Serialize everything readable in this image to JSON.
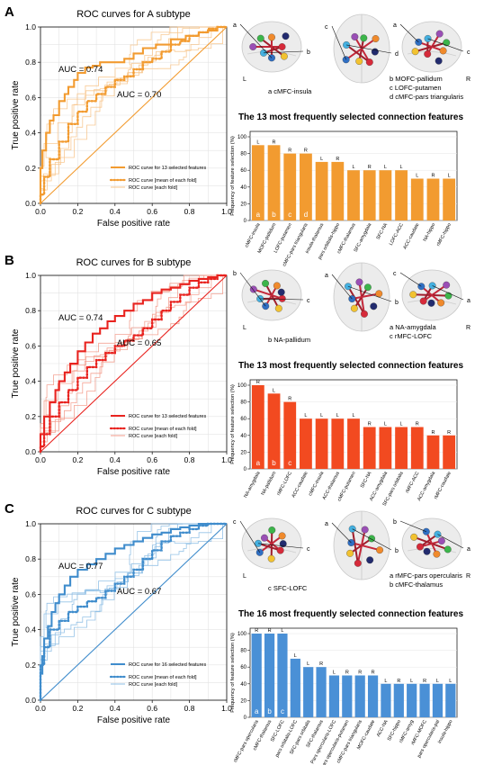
{
  "panels": [
    {
      "letter": "A",
      "roc_title": "ROC curves for A subtype",
      "color": "#f29b30",
      "light_color": "#f7c48a",
      "bar_color": "#f29b30",
      "x_axis_label": "False positive rate",
      "y_axis_label": "True positive rate",
      "auc_main": "AUC = 0.74",
      "auc_fold": "AUC = 0.70",
      "legend": [
        "ROC curve for 13 selected features",
        "ROC curve [mean of each fold]",
        "ROC curve [each fold]"
      ],
      "brain_side_left": "L",
      "brain_side_right": "R",
      "brain_letters": [
        "a",
        "b",
        "c",
        "d",
        "a",
        "c"
      ],
      "conn_left": [
        "a  cMFC-insula"
      ],
      "conn_right": [
        "b  MOFC-pallidum",
        "c  LOFC-putamen",
        "d  cMFC-pars triangularis"
      ],
      "bar_title": "The 13 most frequently selected connection features",
      "bar_ylabel": "Frequency of feature selection (%)",
      "bar_yticks": [
        "0",
        "20",
        "40",
        "60",
        "80",
        "100"
      ],
      "features": [
        "cMFC-insula",
        "MOFC-pallidum",
        "LOFC-putamen",
        "cMFC-pars triangularis",
        "insula-thalamus",
        "pars orbitalis-hippo",
        "cMFC-thalamus",
        "SFC-amygdala",
        "SFC-NA",
        "LOFC-ACC",
        "ACC-caudate",
        "NA-hippo",
        "rMFC-hippo"
      ],
      "top_labels": [
        "L",
        "R",
        "R",
        "R",
        "L",
        "R",
        "L",
        "R",
        "L",
        "L",
        "L",
        "R",
        "L"
      ],
      "inner_labels": [
        "a",
        "b",
        "c",
        "d"
      ]
    },
    {
      "letter": "B",
      "roc_title": "ROC curves for B subtype",
      "color": "#e8231f",
      "light_color": "#f39a8a",
      "bar_color": "#f24a20",
      "x_axis_label": "False positive rate",
      "y_axis_label": "True positive rate",
      "auc_main": "AUC = 0.74",
      "auc_fold": "AUC = 0.65",
      "legend": [
        "ROC curve for 13 selected features",
        "ROC curve [mean of each fold]",
        "ROC curve [each fold]"
      ],
      "brain_side_left": "L",
      "brain_side_right": "R",
      "brain_letters": [
        "b",
        "c",
        "a",
        "b",
        "c",
        "a"
      ],
      "conn_left": [
        "b  NA-pallidum"
      ],
      "conn_right": [
        "a  NA-amygdala",
        "c  rMFC-LOFC"
      ],
      "bar_title": "The 13 most frequently selected connection features",
      "bar_ylabel": "Frequency of feature selection (%)",
      "bar_yticks": [
        "0",
        "20",
        "40",
        "60",
        "80",
        "100"
      ],
      "features": [
        "NA-amygdala",
        "NA-pallidum",
        "rMFC-LOFC",
        "ACC-caudate",
        "cMFC-insula",
        "ACC-thalamus",
        "cMFC-putamen",
        "SFC-NA",
        "ACC-amygdala",
        "SFC-pars orbitalis",
        "rMFC-ACC",
        "ACC-amygdala",
        "rMFC-caudate"
      ],
      "top_labels": [
        "R",
        "L",
        "R",
        "L",
        "L",
        "L",
        "L",
        "R",
        "L",
        "L",
        "R",
        "R",
        "R"
      ],
      "inner_labels": [
        "a",
        "b",
        "c"
      ]
    },
    {
      "letter": "C",
      "roc_title": "ROC curves for C subtype",
      "color": "#3f8ccc",
      "light_color": "#8bbce4",
      "bar_color": "#4a90d6",
      "x_axis_label": "False positive rate",
      "y_axis_label": "True positive rate",
      "auc_main": "AUC = 0.77",
      "auc_fold": "AUC = 0.67",
      "legend": [
        "ROC curve for 16 selected features",
        "ROC curve [mean of each fold]",
        "ROC curve [each fold]"
      ],
      "brain_side_left": "L",
      "brain_side_right": "R",
      "brain_letters": [
        "c",
        "c",
        "a",
        "b",
        "b",
        "a"
      ],
      "conn_left": [
        "c  SFC-LOFC"
      ],
      "conn_right": [
        "a  rMFC-pars opercularis",
        "b  cMFC-thalamus"
      ],
      "bar_title": "The 16 most frequently selected connection features",
      "bar_ylabel": "Frequency of feature selection (%)",
      "bar_yticks": [
        "0",
        "20",
        "40",
        "60",
        "80",
        "100"
      ],
      "features": [
        "rMFC-pars opercularis",
        "cMFC-thalamus",
        "SFC-LOFC",
        "pars orbitalis-LOFC",
        "SFC-pars orbitalis",
        "SFC-thalamus",
        "Pars opercularis-LOFC",
        "Pars opercularis-putamen",
        "cMFC-pars triangularis",
        "MOFC-caudate",
        "ACC-NA",
        "SFC-hippo",
        "rMFC-amyg",
        "rMFC-MOFC",
        "pars opercularis-pal",
        "insula-hippo"
      ],
      "top_labels": [
        "R",
        "R",
        "L",
        "L",
        "L",
        "R",
        "L",
        "R",
        "R",
        "R",
        "L",
        "R",
        "L",
        "R",
        "L",
        "L"
      ],
      "inner_labels": [
        "a",
        "b",
        "c"
      ]
    }
  ],
  "roc_ticks": [
    "0.0",
    "0.2",
    "0.4",
    "0.6",
    "0.8",
    "1.0"
  ],
  "chart_data": [
    {
      "type": "line",
      "title": "ROC curves for A subtype",
      "xlabel": "False positive rate",
      "ylabel": "True positive rate",
      "xlim": [
        0,
        1
      ],
      "ylim": [
        0,
        1
      ],
      "series": [
        {
          "name": "ROC curve for 13 selected features",
          "x": [
            0,
            0.01,
            0.03,
            0.05,
            0.07,
            0.1,
            0.13,
            0.15,
            0.18,
            0.2,
            0.24,
            0.28,
            0.32,
            0.36,
            0.4,
            0.45,
            0.5,
            0.55,
            0.62,
            0.7,
            0.78,
            0.85,
            0.9,
            0.95,
            1.0
          ],
          "y": [
            0,
            0.2,
            0.3,
            0.4,
            0.47,
            0.5,
            0.58,
            0.62,
            0.66,
            0.7,
            0.74,
            0.77,
            0.78,
            0.8,
            0.8,
            0.8,
            0.82,
            0.85,
            0.88,
            0.9,
            0.93,
            0.95,
            0.97,
            0.98,
            1.0
          ]
        },
        {
          "name": "ROC curve [mean of each fold]",
          "x": [
            0,
            0.02,
            0.05,
            0.1,
            0.15,
            0.2,
            0.25,
            0.3,
            0.35,
            0.4,
            0.45,
            0.5,
            0.55,
            0.6,
            0.65,
            0.7,
            0.75,
            0.8,
            0.85,
            0.9,
            0.95,
            1.0
          ],
          "y": [
            0,
            0.05,
            0.15,
            0.25,
            0.35,
            0.45,
            0.52,
            0.58,
            0.62,
            0.66,
            0.7,
            0.72,
            0.76,
            0.8,
            0.82,
            0.86,
            0.9,
            0.92,
            0.95,
            0.97,
            0.99,
            1.0
          ]
        },
        {
          "name": "chance",
          "x": [
            0,
            1
          ],
          "y": [
            0,
            1
          ]
        }
      ]
    },
    {
      "type": "bar",
      "title": "The 13 most frequently selected connection features",
      "ylabel": "Frequency of feature selection (%)",
      "ylim": [
        0,
        100
      ],
      "categories": [
        "cMFC-insula",
        "MOFC-pallidum",
        "LOFC-putamen",
        "cMFC-pars triangularis",
        "insula-thalamus",
        "pars orbitalis-hippo",
        "cMFC-thalamus",
        "SFC-amygdala",
        "SFC-NA",
        "LOFC-ACC",
        "ACC-caudate",
        "NA-hippo",
        "rMFC-hippo"
      ],
      "values": [
        90,
        90,
        80,
        80,
        70,
        70,
        60,
        60,
        60,
        60,
        50,
        50,
        50
      ]
    },
    {
      "type": "line",
      "title": "ROC curves for B subtype",
      "xlabel": "False positive rate",
      "ylabel": "True positive rate",
      "xlim": [
        0,
        1
      ],
      "ylim": [
        0,
        1
      ],
      "series": [
        {
          "name": "ROC curve for 13 selected features",
          "x": [
            0,
            0.02,
            0.05,
            0.08,
            0.1,
            0.13,
            0.16,
            0.2,
            0.24,
            0.28,
            0.32,
            0.36,
            0.4,
            0.45,
            0.5,
            0.55,
            0.6,
            0.65,
            0.7,
            0.75,
            0.8,
            0.85,
            0.9,
            0.95,
            1.0
          ],
          "y": [
            0,
            0.1,
            0.2,
            0.28,
            0.35,
            0.4,
            0.45,
            0.5,
            0.57,
            0.62,
            0.67,
            0.7,
            0.74,
            0.77,
            0.8,
            0.84,
            0.86,
            0.9,
            0.92,
            0.93,
            0.95,
            0.97,
            0.98,
            0.99,
            1.0
          ]
        },
        {
          "name": "ROC curve [mean of each fold]",
          "x": [
            0,
            0.02,
            0.05,
            0.1,
            0.15,
            0.2,
            0.25,
            0.3,
            0.35,
            0.4,
            0.45,
            0.5,
            0.55,
            0.6,
            0.65,
            0.7,
            0.75,
            0.8,
            0.85,
            0.9,
            0.95,
            1.0
          ],
          "y": [
            0,
            0.03,
            0.1,
            0.2,
            0.28,
            0.35,
            0.42,
            0.48,
            0.52,
            0.56,
            0.6,
            0.63,
            0.66,
            0.7,
            0.75,
            0.8,
            0.85,
            0.89,
            0.93,
            0.96,
            0.98,
            1.0
          ]
        },
        {
          "name": "chance",
          "x": [
            0,
            1
          ],
          "y": [
            0,
            1
          ]
        }
      ]
    },
    {
      "type": "bar",
      "title": "The 13 most frequently selected connection features",
      "ylabel": "Frequency of feature selection (%)",
      "ylim": [
        0,
        100
      ],
      "categories": [
        "NA-amygdala",
        "NA-pallidum",
        "rMFC-LOFC",
        "ACC-caudate",
        "cMFC-insula",
        "ACC-thalamus",
        "cMFC-putamen",
        "SFC-NA",
        "ACC-amygdala",
        "SFC-pars orbitalis",
        "rMFC-ACC",
        "ACC-amygdala",
        "rMFC-caudate"
      ],
      "values": [
        100,
        90,
        80,
        60,
        60,
        60,
        60,
        50,
        50,
        50,
        50,
        40,
        40
      ]
    },
    {
      "type": "line",
      "title": "ROC curves for C subtype",
      "xlabel": "False positive rate",
      "ylabel": "True positive rate",
      "xlim": [
        0,
        1
      ],
      "ylim": [
        0,
        1
      ],
      "series": [
        {
          "name": "ROC curve for 16 selected features",
          "x": [
            0,
            0.01,
            0.02,
            0.04,
            0.06,
            0.08,
            0.1,
            0.13,
            0.16,
            0.2,
            0.25,
            0.3,
            0.35,
            0.4,
            0.45,
            0.5,
            0.55,
            0.6,
            0.65,
            0.7,
            0.75,
            0.8,
            0.85,
            0.9,
            0.95,
            1.0
          ],
          "y": [
            0,
            0.15,
            0.25,
            0.35,
            0.42,
            0.5,
            0.55,
            0.6,
            0.65,
            0.7,
            0.74,
            0.77,
            0.8,
            0.83,
            0.86,
            0.88,
            0.9,
            0.92,
            0.94,
            0.95,
            0.97,
            0.98,
            0.99,
            1.0,
            1.0,
            1.0
          ]
        },
        {
          "name": "ROC curve [mean of each fold]",
          "x": [
            0,
            0.02,
            0.05,
            0.1,
            0.15,
            0.2,
            0.25,
            0.3,
            0.35,
            0.4,
            0.45,
            0.5,
            0.55,
            0.6,
            0.65,
            0.7,
            0.75,
            0.8,
            0.85,
            0.9,
            0.95,
            1.0
          ],
          "y": [
            0,
            0.2,
            0.3,
            0.4,
            0.45,
            0.5,
            0.53,
            0.56,
            0.58,
            0.62,
            0.66,
            0.7,
            0.74,
            0.8,
            0.85,
            0.9,
            0.93,
            0.95,
            0.97,
            0.99,
            1.0,
            1.0
          ]
        },
        {
          "name": "chance",
          "x": [
            0,
            1
          ],
          "y": [
            0,
            1
          ]
        }
      ]
    },
    {
      "type": "bar",
      "title": "The 16 most frequently selected connection features",
      "ylabel": "Frequency of feature selection (%)",
      "ylim": [
        0,
        100
      ],
      "categories": [
        "rMFC-pars opercularis",
        "cMFC-thalamus",
        "SFC-LOFC",
        "pars orbitalis-LOFC",
        "SFC-pars orbitalis",
        "SFC-thalamus",
        "Pars opercularis-LOFC",
        "Pars opercularis-putamen",
        "cMFC-pars triangularis",
        "MOFC-caudate",
        "ACC-NA",
        "SFC-hippo",
        "rMFC-amyg",
        "rMFC-MOFC",
        "pars opercularis-pal",
        "insula-hippo"
      ],
      "values": [
        100,
        100,
        100,
        70,
        60,
        60,
        50,
        50,
        50,
        50,
        40,
        40,
        40,
        40,
        40,
        40
      ]
    }
  ]
}
